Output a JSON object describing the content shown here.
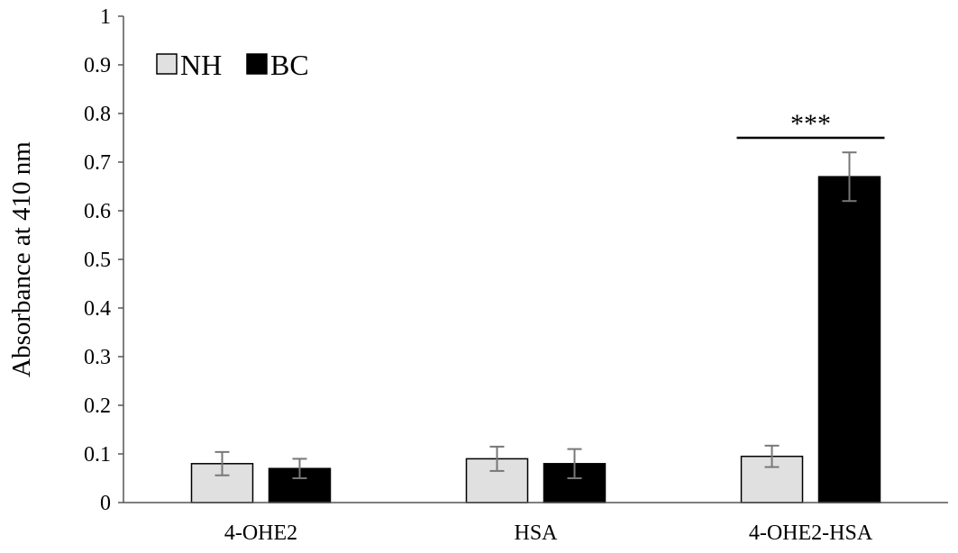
{
  "chart_data": {
    "type": "bar",
    "title": "",
    "xlabel": "",
    "ylabel": "Absorbance at 410 nm",
    "ylim": [
      0,
      1
    ],
    "yticks": [
      0,
      0.1,
      0.2,
      0.3,
      0.4,
      0.5,
      0.6,
      0.7,
      0.8,
      0.9,
      1
    ],
    "ytick_labels": [
      "0",
      "0.1",
      "0.2",
      "0.3",
      "0.4",
      "0.5",
      "0.6",
      "0.7",
      "0.8",
      "0.9",
      "1"
    ],
    "categories": [
      "4-OHE2",
      "HSA",
      "4-OHE2-HSA"
    ],
    "grid": false,
    "legend_placement": "top-left",
    "series": [
      {
        "name": "NH",
        "color": "#e0e0e0",
        "values": [
          0.08,
          0.09,
          0.095
        ],
        "errors": [
          0.024,
          0.025,
          0.022
        ]
      },
      {
        "name": "BC",
        "color": "#000000",
        "values": [
          0.07,
          0.08,
          0.67
        ],
        "errors": [
          0.02,
          0.03,
          0.05
        ]
      }
    ],
    "annotations": [
      {
        "text": "***",
        "category": "4-OHE2-HSA",
        "y": 0.75
      }
    ]
  }
}
